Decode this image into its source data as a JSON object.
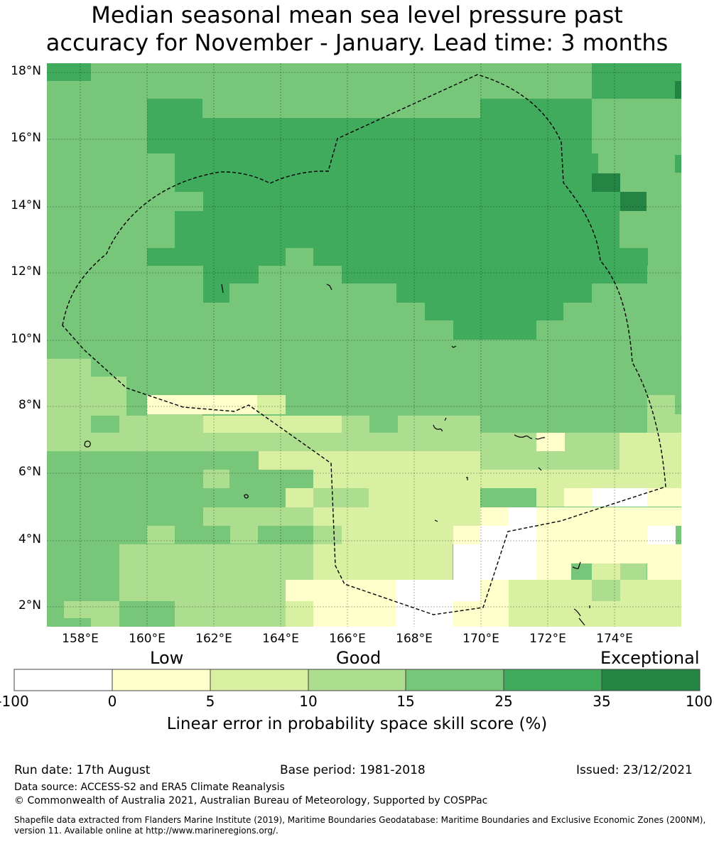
{
  "title_line1": "Median seasonal mean sea level pressure past",
  "title_line2": "accuracy for November - January. Lead time: 3 months",
  "map": {
    "lat_labels": [
      "18°N",
      "16°N",
      "14°N",
      "12°N",
      "10°N",
      "8°N",
      "6°N",
      "4°N",
      "2°N"
    ],
    "lon_labels": [
      "158°E",
      "160°E",
      "162°E",
      "164°E",
      "166°E",
      "168°E",
      "170°E",
      "172°E",
      "174°E"
    ],
    "colors": {
      "white": "#ffffff",
      "c0": "#ffffcc",
      "c5": "#d9f0a3",
      "c10": "#addd8e",
      "c15": "#78c679",
      "c25": "#41ab5d",
      "c35": "#238443"
    }
  },
  "legend": {
    "categories": [
      "Low",
      "Good",
      "Exceptional"
    ],
    "ticks": [
      "-100",
      "0",
      "5",
      "10",
      "15",
      "25",
      "35",
      "100"
    ],
    "title": "Linear error in probability space skill score (%)"
  },
  "footer": {
    "run_date": "Run date: 17th August",
    "base_period": "Base period: 1981-2018",
    "issued": "Issued: 23/12/2021",
    "data_source": "Data source: ACCESS-S2 and ERA5 Climate Reanalysis",
    "copyright": "© Commonwealth of Australia 2021, Australian Bureau of Meteorology, Supported by COSPPac",
    "shapefile_line1": "Shapefile data extracted from Flanders Marine Institute (2019), Maritime Boundaries Geodatabase: Maritime Boundaries and Exclusive Economic Zones (200NM),",
    "shapefile_line2": "version 11. Available online at http://www.marineregions.org/."
  }
}
